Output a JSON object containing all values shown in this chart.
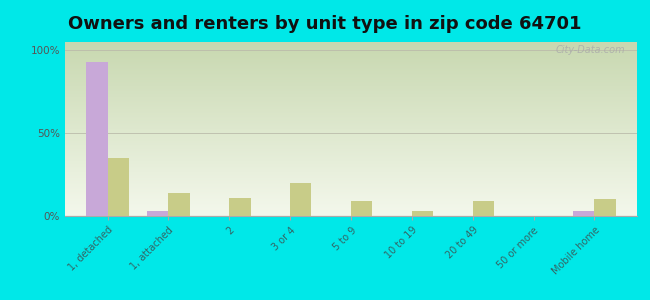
{
  "title": "Owners and renters by unit type in zip code 64701",
  "categories": [
    "1, detached",
    "1, attached",
    "2",
    "3 or 4",
    "5 to 9",
    "10 to 19",
    "20 to 49",
    "50 or more",
    "Mobile home"
  ],
  "owner_values": [
    93,
    3,
    0,
    0,
    0,
    0,
    0,
    0,
    3
  ],
  "renter_values": [
    35,
    14,
    11,
    20,
    9,
    3,
    9,
    0,
    10
  ],
  "owner_color": "#c8a8d8",
  "renter_color": "#c8cc88",
  "background_color": "#00e8e8",
  "plot_bg_top_left": "#c8d8b0",
  "plot_bg_bottom_right": "#f0f8e8",
  "ylim": [
    0,
    105
  ],
  "yticks": [
    0,
    50,
    100
  ],
  "ytick_labels": [
    "0%",
    "50%",
    "100%"
  ],
  "bar_width": 0.35,
  "title_fontsize": 13,
  "watermark": "City-Data.com"
}
